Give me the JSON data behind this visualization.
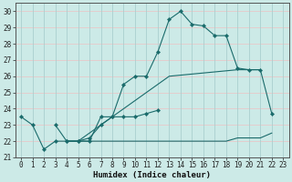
{
  "xlabel": "Humidex (Indice chaleur)",
  "background_color": "#cceae7",
  "grid_color_h": "#e8c8c8",
  "grid_color_v": "#aacfcf",
  "line_color": "#1a6b6b",
  "xlim": [
    -0.5,
    23.5
  ],
  "ylim": [
    21.0,
    30.5
  ],
  "xticks": [
    0,
    1,
    2,
    3,
    4,
    5,
    6,
    7,
    8,
    9,
    10,
    11,
    12,
    13,
    14,
    15,
    16,
    17,
    18,
    19,
    20,
    21,
    22,
    23
  ],
  "yticks": [
    21,
    22,
    23,
    24,
    25,
    26,
    27,
    28,
    29,
    30
  ],
  "s1_x": [
    0,
    1,
    2,
    3,
    4,
    5,
    6,
    7,
    8,
    9,
    10,
    11,
    12,
    13,
    14,
    15,
    16,
    17,
    18,
    19,
    20,
    21,
    22
  ],
  "s1_y": [
    23.5,
    23.0,
    21.5,
    22.0,
    22.0,
    22.0,
    22.0,
    23.5,
    23.5,
    25.5,
    26.0,
    26.0,
    27.5,
    29.5,
    30.0,
    29.2,
    29.1,
    28.5,
    28.5,
    26.5,
    26.4,
    26.4,
    23.7
  ],
  "s2_x": [
    3,
    4,
    5,
    6,
    7,
    8,
    9,
    10,
    11,
    12
  ],
  "s2_y": [
    23.0,
    22.0,
    22.0,
    22.2,
    23.0,
    23.5,
    23.5,
    23.5,
    23.7,
    23.9
  ],
  "s3_x": [
    4,
    5,
    6,
    7,
    8,
    9,
    10,
    11,
    12,
    13,
    14,
    15,
    16,
    17,
    18,
    19,
    20,
    21,
    22
  ],
  "s3_y": [
    22.0,
    22.0,
    22.0,
    22.0,
    22.0,
    22.0,
    22.0,
    22.0,
    22.0,
    22.0,
    22.0,
    22.0,
    22.0,
    22.0,
    22.0,
    22.2,
    22.2,
    22.2,
    22.5
  ],
  "s4_x": [
    4,
    5,
    6,
    7,
    8,
    9,
    10,
    11,
    12,
    13,
    19,
    20,
    21
  ],
  "s4_y": [
    22.0,
    22.0,
    22.5,
    23.0,
    23.5,
    24.0,
    24.5,
    25.0,
    25.5,
    26.0,
    26.4,
    26.4,
    26.4
  ]
}
